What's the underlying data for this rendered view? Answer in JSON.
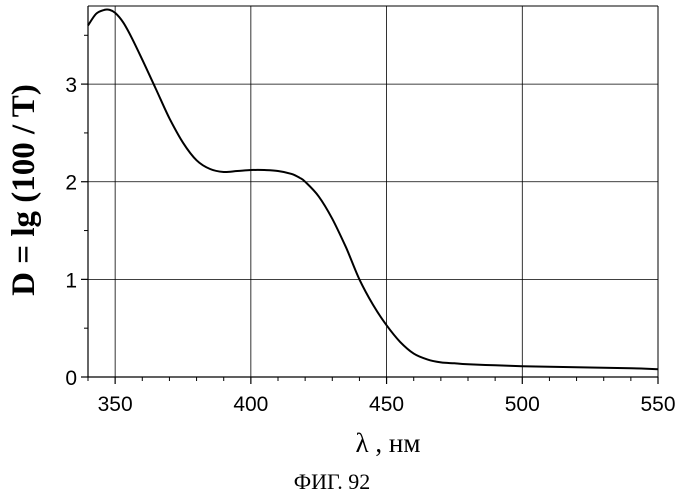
{
  "chart_data": {
    "type": "line",
    "title": "",
    "xlabel": "λ , нм",
    "ylabel": "D = lg (100 / T)",
    "caption": "ФИГ. 92",
    "xlim": [
      340,
      550
    ],
    "ylim": [
      0,
      3.8
    ],
    "x_ticks": [
      350,
      400,
      450,
      500,
      550
    ],
    "y_ticks": [
      0,
      1,
      2,
      3
    ],
    "grid": true,
    "legend": "none",
    "line_color": "#000000",
    "series": [
      {
        "x": [
          340,
          343,
          346,
          348,
          350,
          353,
          356,
          360,
          365,
          370,
          375,
          380,
          385,
          390,
          395,
          400,
          405,
          410,
          415,
          418,
          420,
          425,
          430,
          435,
          440,
          445,
          450,
          455,
          460,
          465,
          470,
          475,
          480,
          490,
          500,
          510,
          520,
          530,
          540,
          550
        ],
        "y": [
          3.6,
          3.72,
          3.76,
          3.76,
          3.73,
          3.63,
          3.48,
          3.25,
          2.95,
          2.65,
          2.4,
          2.22,
          2.13,
          2.1,
          2.11,
          2.12,
          2.12,
          2.11,
          2.08,
          2.04,
          2.0,
          1.85,
          1.62,
          1.33,
          1.0,
          0.74,
          0.53,
          0.36,
          0.24,
          0.18,
          0.15,
          0.14,
          0.13,
          0.12,
          0.11,
          0.105,
          0.1,
          0.095,
          0.09,
          0.08
        ]
      }
    ]
  }
}
